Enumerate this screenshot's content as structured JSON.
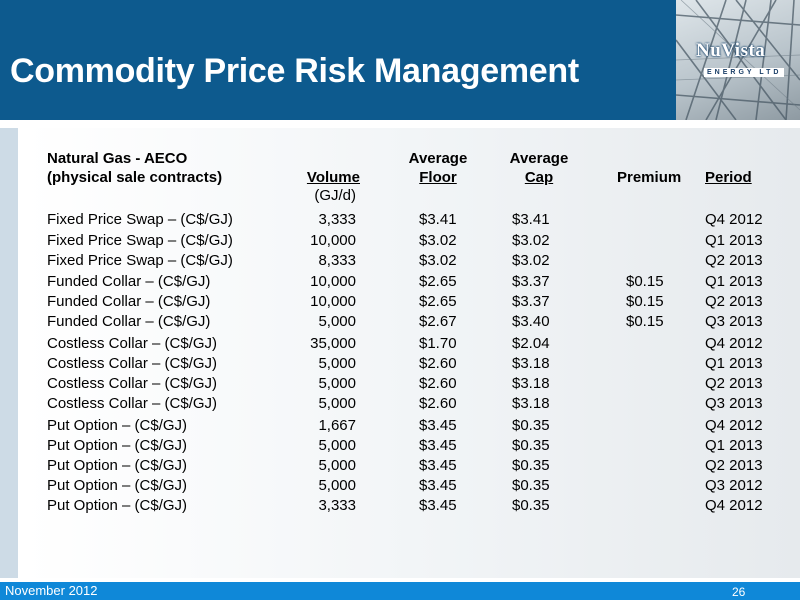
{
  "slide": {
    "title": "Commodity Price Risk Management",
    "footer_date": "November 2012",
    "page_number": "26"
  },
  "logo": {
    "name": "NuVista",
    "subtitle": "ENERGY LTD"
  },
  "table": {
    "headers": {
      "label_line1": "Natural Gas - AECO",
      "label_line2": "(physical sale contracts)",
      "volume": "Volume",
      "volume_unit": "(GJ/d)",
      "floor_line1": "Average",
      "floor_line2": "Floor",
      "cap_line1": "Average",
      "cap_line2": "Cap",
      "premium": "Premium",
      "period": "Period"
    },
    "rows": [
      {
        "label": "Fixed Price Swap – (C$/GJ)",
        "volume": "3,333",
        "floor": "$3.41",
        "cap": "$3.41",
        "premium": "",
        "period": "Q4 2012"
      },
      {
        "label": "Fixed Price Swap – (C$/GJ)",
        "volume": "10,000",
        "floor": "$3.02",
        "cap": "$3.02",
        "premium": "",
        "period": "Q1 2013"
      },
      {
        "label": "Fixed Price Swap – (C$/GJ)",
        "volume": "8,333",
        "floor": "$3.02",
        "cap": "$3.02",
        "premium": "",
        "period": "Q2 2013"
      },
      {
        "label": "Funded Collar – (C$/GJ)",
        "volume": "10,000",
        "floor": "$2.65",
        "cap": "$3.37",
        "premium": "$0.15",
        "period": "Q1 2013"
      },
      {
        "label": "Funded Collar – (C$/GJ)",
        "volume": "10,000",
        "floor": "$2.65",
        "cap": "$3.37",
        "premium": "$0.15",
        "period": "Q2 2013"
      },
      {
        "label": "Funded Collar – (C$/GJ)",
        "volume": "5,000",
        "floor": "$2.67",
        "cap": "$3.40",
        "premium": "$0.15",
        "period": "Q3 2013"
      },
      {
        "label": "Costless Collar – (C$/GJ)",
        "volume": "35,000",
        "floor": "$1.70",
        "cap": "$2.04",
        "premium": "",
        "period": "Q4 2012"
      },
      {
        "label": "Costless Collar – (C$/GJ)",
        "volume": "5,000",
        "floor": "$2.60",
        "cap": "$3.18",
        "premium": "",
        "period": "Q1 2013"
      },
      {
        "label": "Costless Collar – (C$/GJ)",
        "volume": "5,000",
        "floor": "$2.60",
        "cap": "$3.18",
        "premium": "",
        "period": "Q2 2013"
      },
      {
        "label": "Costless Collar – (C$/GJ)",
        "volume": "5,000",
        "floor": "$2.60",
        "cap": "$3.18",
        "premium": "",
        "period": "Q3 2013"
      },
      {
        "label": "Put Option – (C$/GJ)",
        "volume": "1,667",
        "floor": "$3.45",
        "cap": "$0.35",
        "premium": "",
        "period": "Q4 2012"
      },
      {
        "label": "Put Option – (C$/GJ)",
        "volume": "5,000",
        "floor": "$3.45",
        "cap": "$0.35",
        "premium": "",
        "period": "Q1 2013"
      },
      {
        "label": "Put Option – (C$/GJ)",
        "volume": "5,000",
        "floor": "$3.45",
        "cap": "$0.35",
        "premium": "",
        "period": "Q2 2013"
      },
      {
        "label": "Put Option – (C$/GJ)",
        "volume": "5,000",
        "floor": "$3.45",
        "cap": "$0.35",
        "premium": "",
        "period": "Q3 2012"
      },
      {
        "label": "Put Option – (C$/GJ)",
        "volume": "3,333",
        "floor": "$3.45",
        "cap": "$0.35",
        "premium": "",
        "period": "Q4 2012"
      }
    ]
  },
  "colors": {
    "header_blue": "#0d5a8e",
    "footer_blue": "#0f88d8"
  }
}
